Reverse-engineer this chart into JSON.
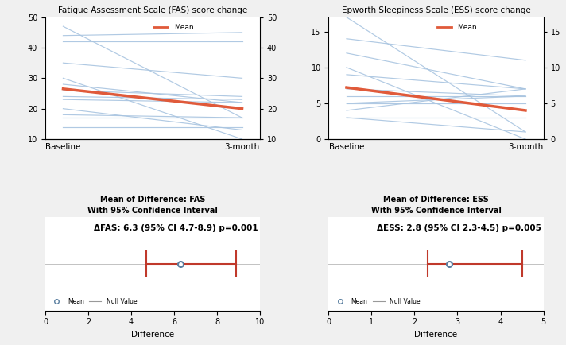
{
  "fas_title": "Fatigue Assessment Scale (FAS) score change",
  "ess_title": "Epworth Sleepiness Scale (ESS) score change",
  "fas_ylim": [
    10,
    50
  ],
  "ess_ylim": [
    0,
    17
  ],
  "fas_yticks": [
    10,
    20,
    30,
    40,
    50
  ],
  "ess_yticks": [
    0,
    5,
    10,
    15
  ],
  "fas_individual_lines": [
    [
      47,
      17
    ],
    [
      44,
      45
    ],
    [
      42,
      42
    ],
    [
      35,
      30
    ],
    [
      30,
      10
    ],
    [
      28,
      22
    ],
    [
      26,
      24
    ],
    [
      24,
      23
    ],
    [
      23,
      22
    ],
    [
      20,
      13
    ],
    [
      18,
      17
    ],
    [
      17,
      17
    ],
    [
      14,
      14
    ]
  ],
  "fas_mean_line": [
    26.5,
    20
  ],
  "ess_individual_lines": [
    [
      17,
      1
    ],
    [
      14,
      11
    ],
    [
      12,
      7
    ],
    [
      10,
      0
    ],
    [
      9,
      7
    ],
    [
      7,
      6
    ],
    [
      6,
      6
    ],
    [
      5,
      6
    ],
    [
      5,
      5
    ],
    [
      4,
      7
    ],
    [
      3,
      1
    ],
    [
      3,
      3
    ]
  ],
  "ess_mean_line": [
    7.2,
    4.0
  ],
  "legend_label": "Mean",
  "line_color": "#a8c4e0",
  "mean_color": "#e05a3a",
  "fas_ci_title": "Mean of Difference: FAS",
  "fas_ci_subtitle": "With 95% Confidence Interval",
  "fas_annotation": "ΔFAS: 6.3 (95% CI 4.7-8.9) p=0.001",
  "fas_mean_val": 6.3,
  "fas_ci_low": 4.7,
  "fas_ci_high": 8.9,
  "fas_xlim": [
    0,
    10
  ],
  "fas_xticks": [
    0,
    2,
    4,
    6,
    8,
    10
  ],
  "ess_ci_title": "Mean of Difference: ESS",
  "ess_ci_subtitle": "With 95% Confidence Interval",
  "ess_annotation": "ΔESS: 2.8 (95% CI 2.3-4.5) p=0.005",
  "ess_mean_val": 2.8,
  "ess_ci_low": 2.3,
  "ess_ci_high": 4.5,
  "ess_xlim": [
    0,
    5
  ],
  "ess_xticks": [
    0,
    1,
    2,
    3,
    4,
    5
  ],
  "ci_color": "#c0392b",
  "ci_marker_color": "#5a7fa0",
  "null_line_color": "#999999",
  "background_color": "#f0f0f0",
  "plot_bg_color": "#ffffff",
  "xlabel_diff": "Difference",
  "x_label_baseline": "Baseline",
  "x_label_3month": "3-month"
}
